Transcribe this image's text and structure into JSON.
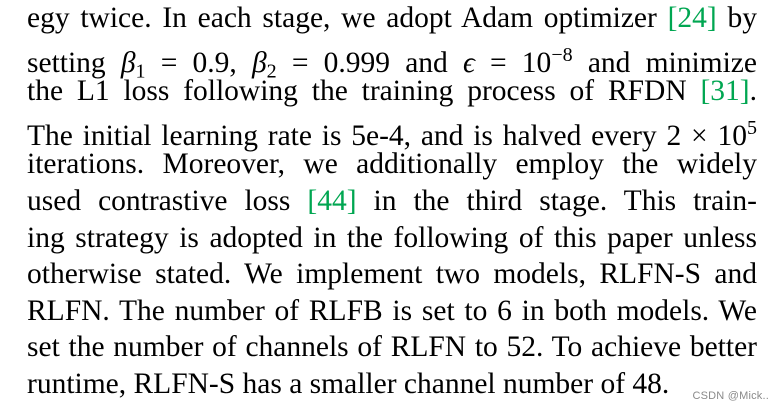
{
  "paragraph": {
    "line1": {
      "text": "egy twice. In each stage, we adopt Adam optimizer ",
      "cite": "[24]",
      "tail": " by"
    },
    "line2": {
      "pre": "setting ",
      "beta": "β",
      "sub1": "1",
      "eq1": " = 0.9, ",
      "beta2": "β",
      "sub2": "2",
      "eq2": " = 0.999 and ",
      "eps": "ϵ",
      "eq3": " = 10",
      "sup": "−8",
      "post": " and minimize"
    },
    "line3": {
      "text": "the L1 loss following the training process of RFDN ",
      "cite": "[31]",
      "tail": "."
    },
    "line4": {
      "text": "The initial learning rate is 5e-4, and is halved every 2 × 10",
      "sup": "5"
    },
    "line5": {
      "text": "iterations.  Moreover, we additionally employ the widely"
    },
    "line6": {
      "pre": "used contrastive loss ",
      "cite": "[44]",
      "post": " in the third stage.  This train-"
    },
    "line7": {
      "text": "ing strategy is adopted in the following of this paper unless"
    },
    "line8": {
      "text": "otherwise stated. We implement two models, RLFN-S and"
    },
    "line9": {
      "text": "RLFN. The number of RLFB is set to 6 in both models. We"
    },
    "line10": {
      "text": "set the number of channels of RLFN to 52. To achieve better"
    },
    "line11": {
      "text": "runtime, RLFN-S has a smaller channel number of 48."
    }
  },
  "watermark": "CSDN @Mick..",
  "colors": {
    "text": "#000000",
    "citation": "#00a651",
    "watermark": "#8a8a8a"
  }
}
